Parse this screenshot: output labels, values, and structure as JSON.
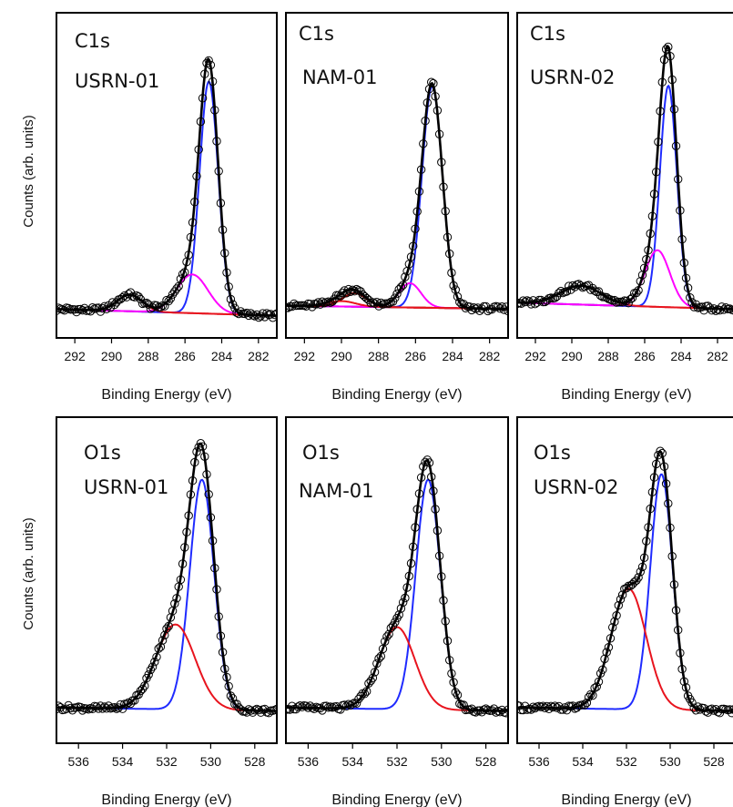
{
  "figure": {
    "ylabel_top": "Counts (arb. units)",
    "ylabel_bottom": "Counts (arb. units)"
  },
  "colors": {
    "data_points": "#000000",
    "envelope": "#000000",
    "component_blue": "#1f2bff",
    "component_magenta": "#ff00ff",
    "component_red": "#e8141e",
    "component_darkred": "#8b0000",
    "background_red": "#d01010"
  },
  "chart_data": [
    {
      "type": "line",
      "panel_label": "C1s",
      "sample": "USRN-01",
      "xlabel": "Binding Energy (eV)",
      "xlim": [
        293,
        281
      ],
      "x_reversed": true,
      "xticks": [
        "292",
        "290",
        "288",
        "286",
        "284",
        "282"
      ],
      "yaxis_ticks_shown": false,
      "series": [
        {
          "color": "#1f2bff",
          "peak_center": 284.7,
          "peak_height": 0.84,
          "fwhm": 1.2
        },
        {
          "color": "#ff00ff",
          "peak_center": 285.6,
          "peak_height": 0.14,
          "fwhm": 2.0
        },
        {
          "color": "#e8141e",
          "peak_center": 289.0,
          "peak_height": 0.06,
          "fwhm": 1.6
        },
        {
          "color": "#000000",
          "name_hidden": "envelope",
          "peak_max": 1.0
        }
      ],
      "baseline_at_292": 0.02,
      "baseline_at_282": 0.0
    },
    {
      "type": "line",
      "panel_label": "C1s",
      "sample": "NAM-01",
      "xlabel": "Binding Energy (eV)",
      "xlim": [
        293,
        281
      ],
      "x_reversed": true,
      "xticks": [
        "292",
        "290",
        "288",
        "286",
        "284",
        "282"
      ],
      "yaxis_ticks_shown": false,
      "series": [
        {
          "color": "#1f2bff",
          "peak_center": 285.1,
          "peak_height": 0.82,
          "fwhm": 1.3
        },
        {
          "color": "#ff00ff",
          "peak_center": 286.3,
          "peak_height": 0.09,
          "fwhm": 1.4
        },
        {
          "color": "#8b0000",
          "peak_center": 289.3,
          "peak_height": 0.05,
          "fwhm": 1.5
        },
        {
          "color": "#e8141e",
          "peak_center": 290.0,
          "peak_height": 0.02,
          "fwhm": 1.8
        },
        {
          "color": "#000000",
          "name_hidden": "envelope",
          "peak_max": 0.86
        }
      ],
      "baseline_at_292": 0.01,
      "baseline_at_282": 0.0
    },
    {
      "type": "line",
      "panel_label": "C1s",
      "sample": "USRN-02",
      "xlabel": "Binding Energy (eV)",
      "xlim": [
        293,
        281
      ],
      "x_reversed": true,
      "xticks": [
        "292",
        "290",
        "288",
        "286",
        "284",
        "282"
      ],
      "yaxis_ticks_shown": false,
      "series": [
        {
          "color": "#1f2bff",
          "peak_center": 284.7,
          "peak_height": 0.82,
          "fwhm": 1.1
        },
        {
          "color": "#ff00ff",
          "peak_center": 285.3,
          "peak_height": 0.21,
          "fwhm": 1.6
        },
        {
          "color": "#e8141e",
          "peak_center": 289.5,
          "peak_height": 0.07,
          "fwhm": 2.6
        },
        {
          "color": "#000000",
          "name_hidden": "envelope",
          "peak_max": 1.0
        }
      ],
      "baseline_at_292": 0.02,
      "baseline_at_282": 0.0
    },
    {
      "type": "line",
      "panel_label": "O1s",
      "sample": "USRN-01",
      "xlabel": "Binding Energy (eV)",
      "xlim": [
        537,
        527
      ],
      "x_reversed": true,
      "xticks": [
        "536",
        "534",
        "532",
        "530",
        "528"
      ],
      "yaxis_ticks_shown": false,
      "series": [
        {
          "color": "#1f2bff",
          "peak_center": 530.4,
          "peak_height": 0.84,
          "fwhm": 1.3
        },
        {
          "color": "#e8141e",
          "peak_center": 531.6,
          "peak_height": 0.31,
          "fwhm": 2.1
        },
        {
          "color": "#000000",
          "name_hidden": "envelope",
          "peak_max": 1.0
        }
      ],
      "baseline_at_536": 0.01,
      "baseline_at_528": 0.0
    },
    {
      "type": "line",
      "panel_label": "O1s",
      "sample": "NAM-01",
      "xlabel": "Binding Energy (eV)",
      "xlim": [
        537,
        527
      ],
      "x_reversed": true,
      "xticks": [
        "536",
        "534",
        "532",
        "530",
        "528"
      ],
      "yaxis_ticks_shown": false,
      "series": [
        {
          "color": "#1f2bff",
          "peak_center": 530.6,
          "peak_height": 0.84,
          "fwhm": 1.3
        },
        {
          "color": "#e8141e",
          "peak_center": 532.0,
          "peak_height": 0.3,
          "fwhm": 1.9
        },
        {
          "color": "#000000",
          "name_hidden": "envelope",
          "peak_max": 0.99
        }
      ],
      "baseline_at_536": 0.01,
      "baseline_at_528": 0.0
    },
    {
      "type": "line",
      "panel_label": "O1s",
      "sample": "USRN-02",
      "xlabel": "Binding Energy (eV)",
      "xlim": [
        537,
        527
      ],
      "x_reversed": true,
      "xticks": [
        "536",
        "534",
        "532",
        "530",
        "528"
      ],
      "yaxis_ticks_shown": false,
      "series": [
        {
          "color": "#1f2bff",
          "peak_center": 530.4,
          "peak_height": 0.86,
          "fwhm": 1.2
        },
        {
          "color": "#e8141e",
          "peak_center": 531.9,
          "peak_height": 0.44,
          "fwhm": 1.9
        },
        {
          "color": "#000000",
          "name_hidden": "envelope",
          "peak_max": 1.0
        }
      ],
      "baseline_at_536": 0.01,
      "baseline_at_528": 0.0
    }
  ]
}
